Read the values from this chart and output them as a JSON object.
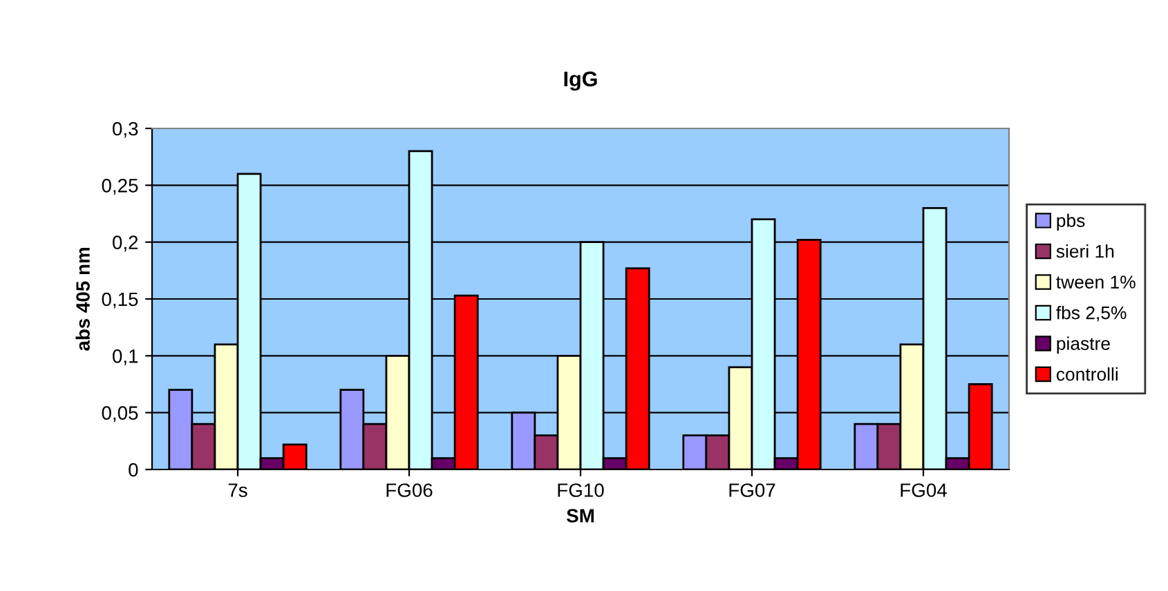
{
  "chart_data": {
    "type": "bar",
    "title": "IgG",
    "xlabel": "SM",
    "ylabel": "abs 405 nm",
    "categories": [
      "7s",
      "FG06",
      "FG10",
      "FG07",
      "FG04"
    ],
    "series": [
      {
        "name": "pbs",
        "color": "#9999ff",
        "values": [
          0.07,
          0.07,
          0.05,
          0.03,
          0.04
        ]
      },
      {
        "name": "sieri 1h",
        "color": "#993366",
        "values": [
          0.04,
          0.04,
          0.03,
          0.03,
          0.04
        ]
      },
      {
        "name": "tween 1%",
        "color": "#ffffcc",
        "values": [
          0.11,
          0.1,
          0.1,
          0.09,
          0.11
        ]
      },
      {
        "name": "fbs 2,5%",
        "color": "#ccffff",
        "values": [
          0.26,
          0.28,
          0.2,
          0.22,
          0.23
        ]
      },
      {
        "name": "piastre",
        "color": "#660066",
        "values": [
          0.01,
          0.01,
          0.01,
          0.01,
          0.01
        ]
      },
      {
        "name": "controlli",
        "color": "#ff0000",
        "values": [
          0.022,
          0.153,
          0.177,
          0.202,
          0.075
        ]
      }
    ],
    "ylim": [
      0,
      0.3
    ],
    "yticks": [
      0,
      {
        "value": 0.05,
        "label": "0,05"
      },
      {
        "value": 0.1,
        "label": "0,1"
      },
      {
        "value": 0.15,
        "label": "0,15"
      },
      {
        "value": 0.2,
        "label": "0,2"
      },
      {
        "value": 0.25,
        "label": "0,25"
      },
      {
        "value": 0.3,
        "label": "0,3"
      }
    ],
    "grid": "y",
    "legend": "right"
  }
}
